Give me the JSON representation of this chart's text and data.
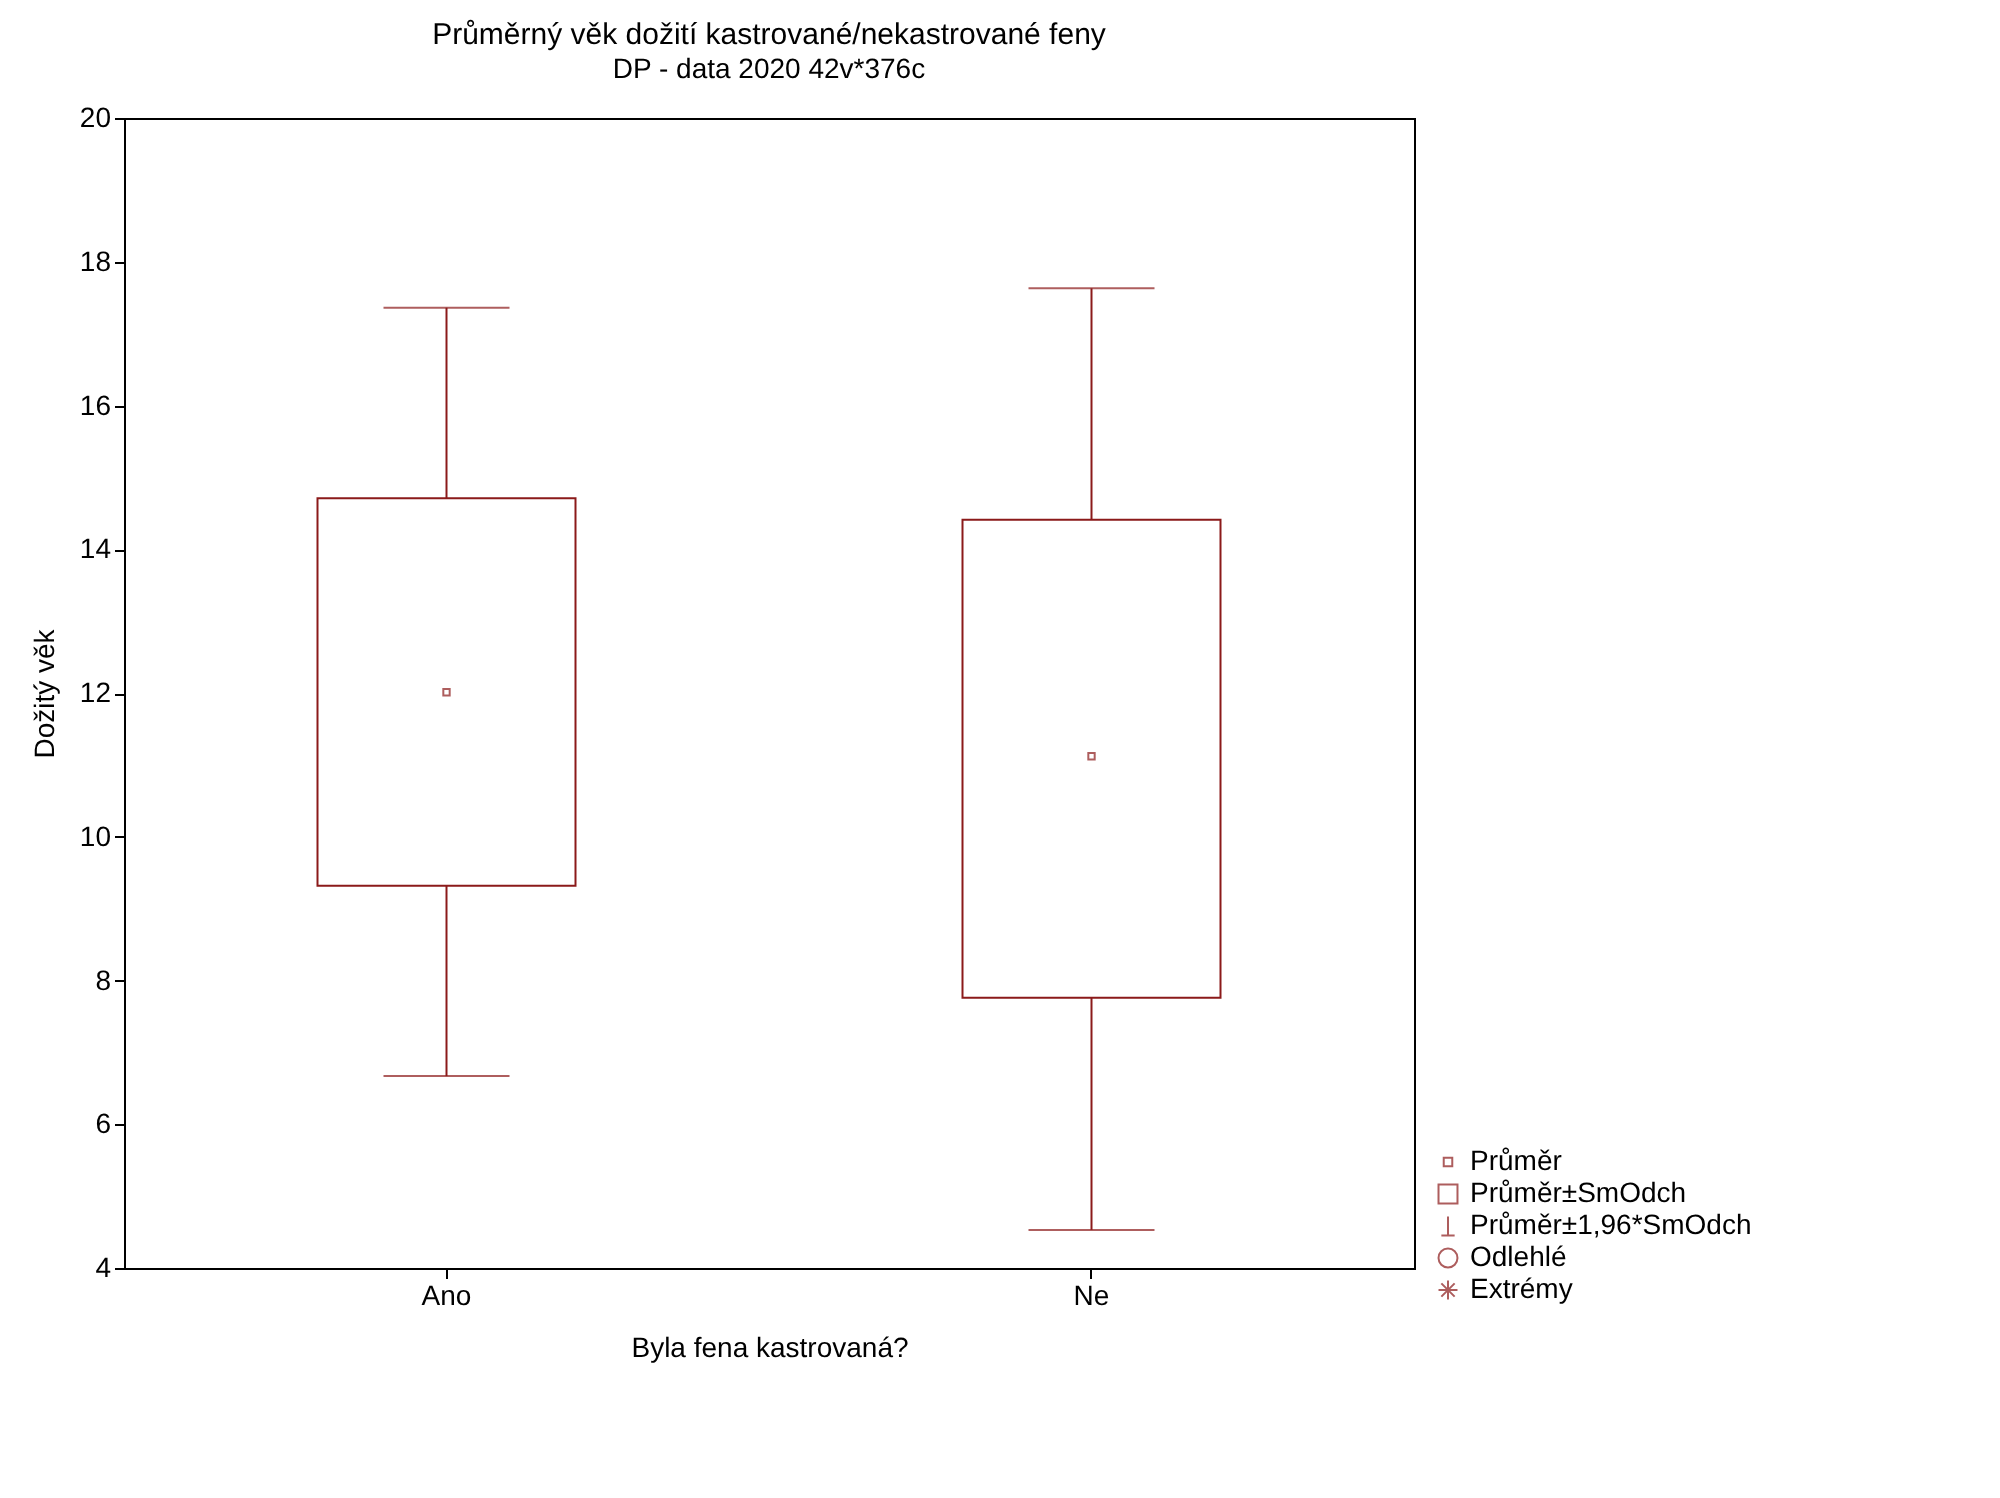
{
  "chart_data": {
    "type": "box",
    "title": "Průměrný věk dožití kastrované/nekastrované feny",
    "subtitle": "DP - data 2020 42v*376c",
    "xlabel": "Byla fena kastrovaná?",
    "ylabel": "Dožitý věk",
    "categories": [
      "Ano",
      "Ne"
    ],
    "ylim": [
      4,
      20
    ],
    "yticks": [
      4,
      6,
      8,
      10,
      12,
      14,
      16,
      18,
      20
    ],
    "grid": false,
    "legend": "bottom right",
    "series": [
      {
        "name": "Průměr",
        "type": "scatter",
        "marker": "square",
        "color": "#8b1a1a",
        "values": [
          12.01,
          11.12
        ]
      },
      {
        "name": "Průměr±SmOdch",
        "type": "box",
        "color": "#8b1a1a",
        "boxes": [
          {
            "low": 6.67,
            "q1": 9.32,
            "q3": 14.71,
            "high": 17.36
          },
          {
            "low": 4.53,
            "q1": 7.76,
            "q3": 14.41,
            "high": 17.63
          }
        ]
      },
      {
        "name": "Průměr±1,96*SmOdch",
        "type": "scatter",
        "marker": "none",
        "color": "#8b1a1a",
        "values": [
          null,
          null
        ]
      },
      {
        "name": "Odlehlé",
        "type": "scatter",
        "marker": "circle",
        "color": "#8b1a1a",
        "values": [
          null,
          null
        ]
      },
      {
        "name": "Extrémy",
        "type": "scatter",
        "marker": "star",
        "color": "#8b1a1a",
        "values": [
          null,
          null
        ]
      }
    ]
  }
}
